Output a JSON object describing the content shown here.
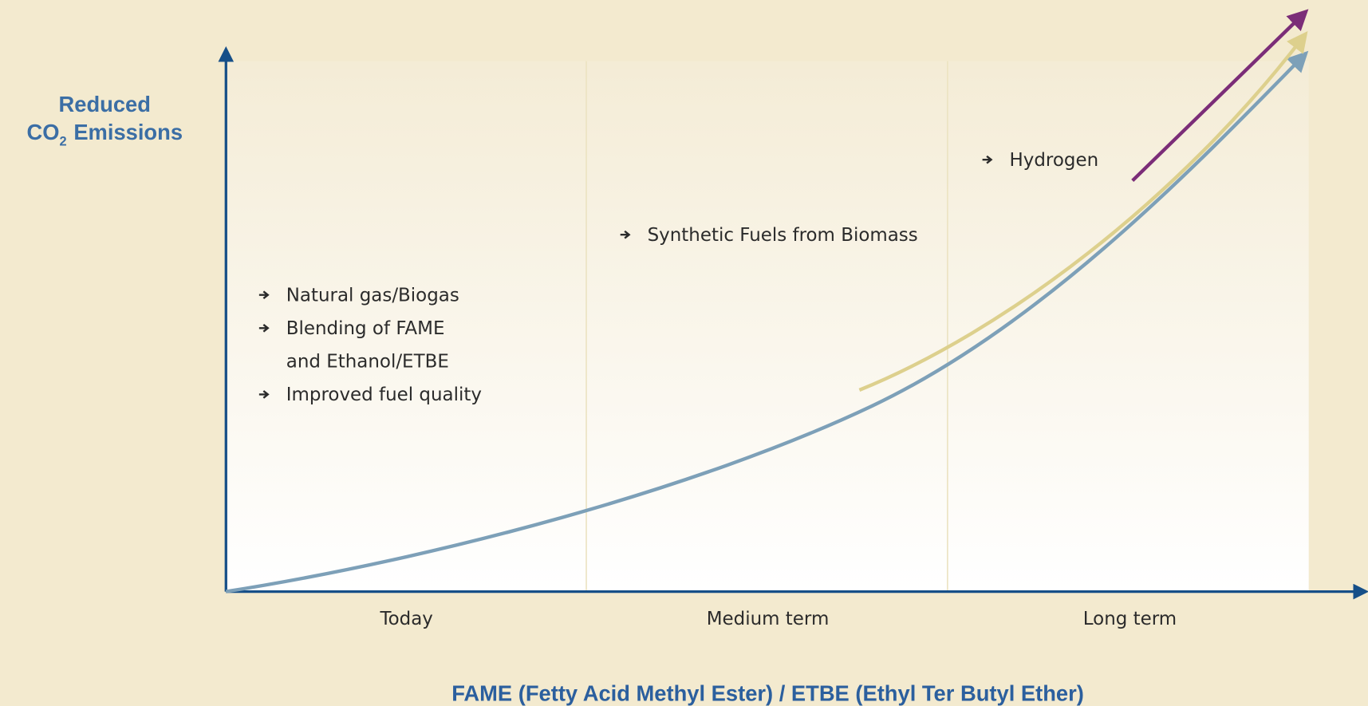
{
  "y_axis_label": {
    "line1": "Reduced",
    "line2": "CO",
    "subscript": "2",
    "line2_end": "Emissions"
  },
  "columns": [
    {
      "label": "Today",
      "items": [
        [
          "Natural gas/Biogas"
        ],
        [
          "Blending of FAME",
          "and Ethanol/ETBE"
        ],
        [
          "Improved fuel quality"
        ]
      ]
    },
    {
      "label": "Medium term",
      "items": [
        [
          "Synthetic Fuels from Biomass"
        ]
      ]
    },
    {
      "label": "Long term",
      "items": [
        [
          "Hydrogen"
        ]
      ]
    }
  ],
  "footer": "FAME (Fetty Acid Methyl Ester) / ETBE (Ethyl Ter Butyl Ether)"
}
